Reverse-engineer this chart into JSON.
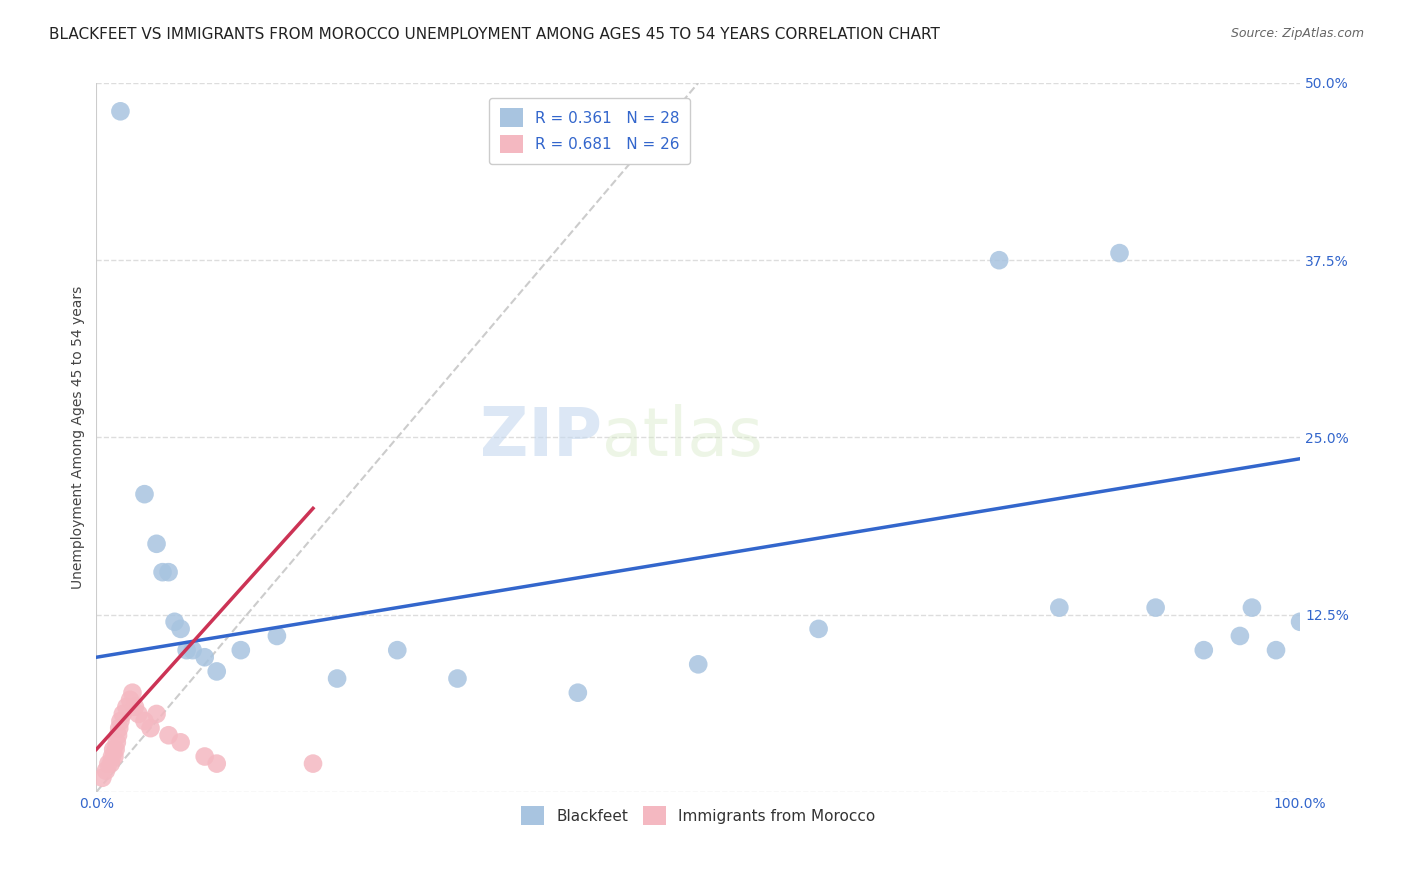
{
  "title": "BLACKFEET VS IMMIGRANTS FROM MOROCCO UNEMPLOYMENT AMONG AGES 45 TO 54 YEARS CORRELATION CHART",
  "source": "Source: ZipAtlas.com",
  "ylabel_label": "Unemployment Among Ages 45 to 54 years",
  "watermark_zip": "ZIP",
  "watermark_atlas": "atlas",
  "xlim": [
    0.0,
    1.0
  ],
  "ylim": [
    0.0,
    0.5
  ],
  "xticks": [
    0.0,
    0.2,
    0.4,
    0.6,
    0.8,
    1.0
  ],
  "xticklabels": [
    "0.0%",
    "",
    "",
    "",
    "",
    "100.0%"
  ],
  "yticks": [
    0.0,
    0.125,
    0.25,
    0.375,
    0.5
  ],
  "yticklabels": [
    "",
    "12.5%",
    "25.0%",
    "37.5%",
    "50.0%"
  ],
  "blackfeet_color": "#a8c4e0",
  "morocco_color": "#f4b8c1",
  "blackfeet_line_color": "#3366cc",
  "morocco_line_color": "#cc3355",
  "diag_color": "#cccccc",
  "R_blackfeet": 0.361,
  "N_blackfeet": 28,
  "R_morocco": 0.681,
  "N_morocco": 26,
  "blackfeet_x": [
    0.02,
    0.04,
    0.05,
    0.055,
    0.06,
    0.065,
    0.07,
    0.075,
    0.08,
    0.09,
    0.1,
    0.12,
    0.15,
    0.2,
    0.25,
    0.3,
    0.4,
    0.5,
    0.6,
    0.75,
    0.8,
    0.85,
    0.88,
    0.92,
    0.95,
    0.96,
    0.98,
    1.0
  ],
  "blackfeet_y": [
    0.48,
    0.21,
    0.175,
    0.155,
    0.155,
    0.12,
    0.115,
    0.1,
    0.1,
    0.095,
    0.085,
    0.1,
    0.11,
    0.08,
    0.1,
    0.08,
    0.07,
    0.09,
    0.115,
    0.375,
    0.13,
    0.38,
    0.13,
    0.1,
    0.11,
    0.13,
    0.1,
    0.12
  ],
  "morocco_x": [
    0.005,
    0.008,
    0.01,
    0.012,
    0.013,
    0.014,
    0.015,
    0.016,
    0.017,
    0.018,
    0.019,
    0.02,
    0.022,
    0.025,
    0.028,
    0.03,
    0.032,
    0.035,
    0.04,
    0.045,
    0.05,
    0.06,
    0.07,
    0.09,
    0.1,
    0.18
  ],
  "morocco_y": [
    0.01,
    0.015,
    0.02,
    0.02,
    0.025,
    0.03,
    0.025,
    0.03,
    0.035,
    0.04,
    0.045,
    0.05,
    0.055,
    0.06,
    0.065,
    0.07,
    0.06,
    0.055,
    0.05,
    0.045,
    0.055,
    0.04,
    0.035,
    0.025,
    0.02,
    0.02
  ],
  "blackfeet_line_x": [
    0.0,
    1.0
  ],
  "blackfeet_line_y": [
    0.095,
    0.235
  ],
  "morocco_line_x": [
    0.0,
    0.18
  ],
  "morocco_line_y": [
    0.03,
    0.2
  ],
  "title_fontsize": 11,
  "source_fontsize": 9,
  "axis_label_fontsize": 10,
  "tick_fontsize": 10,
  "legend_fontsize": 11,
  "watermark_fontsize_zip": 48,
  "watermark_fontsize_atlas": 48,
  "background_color": "#ffffff",
  "grid_color": "#dddddd"
}
